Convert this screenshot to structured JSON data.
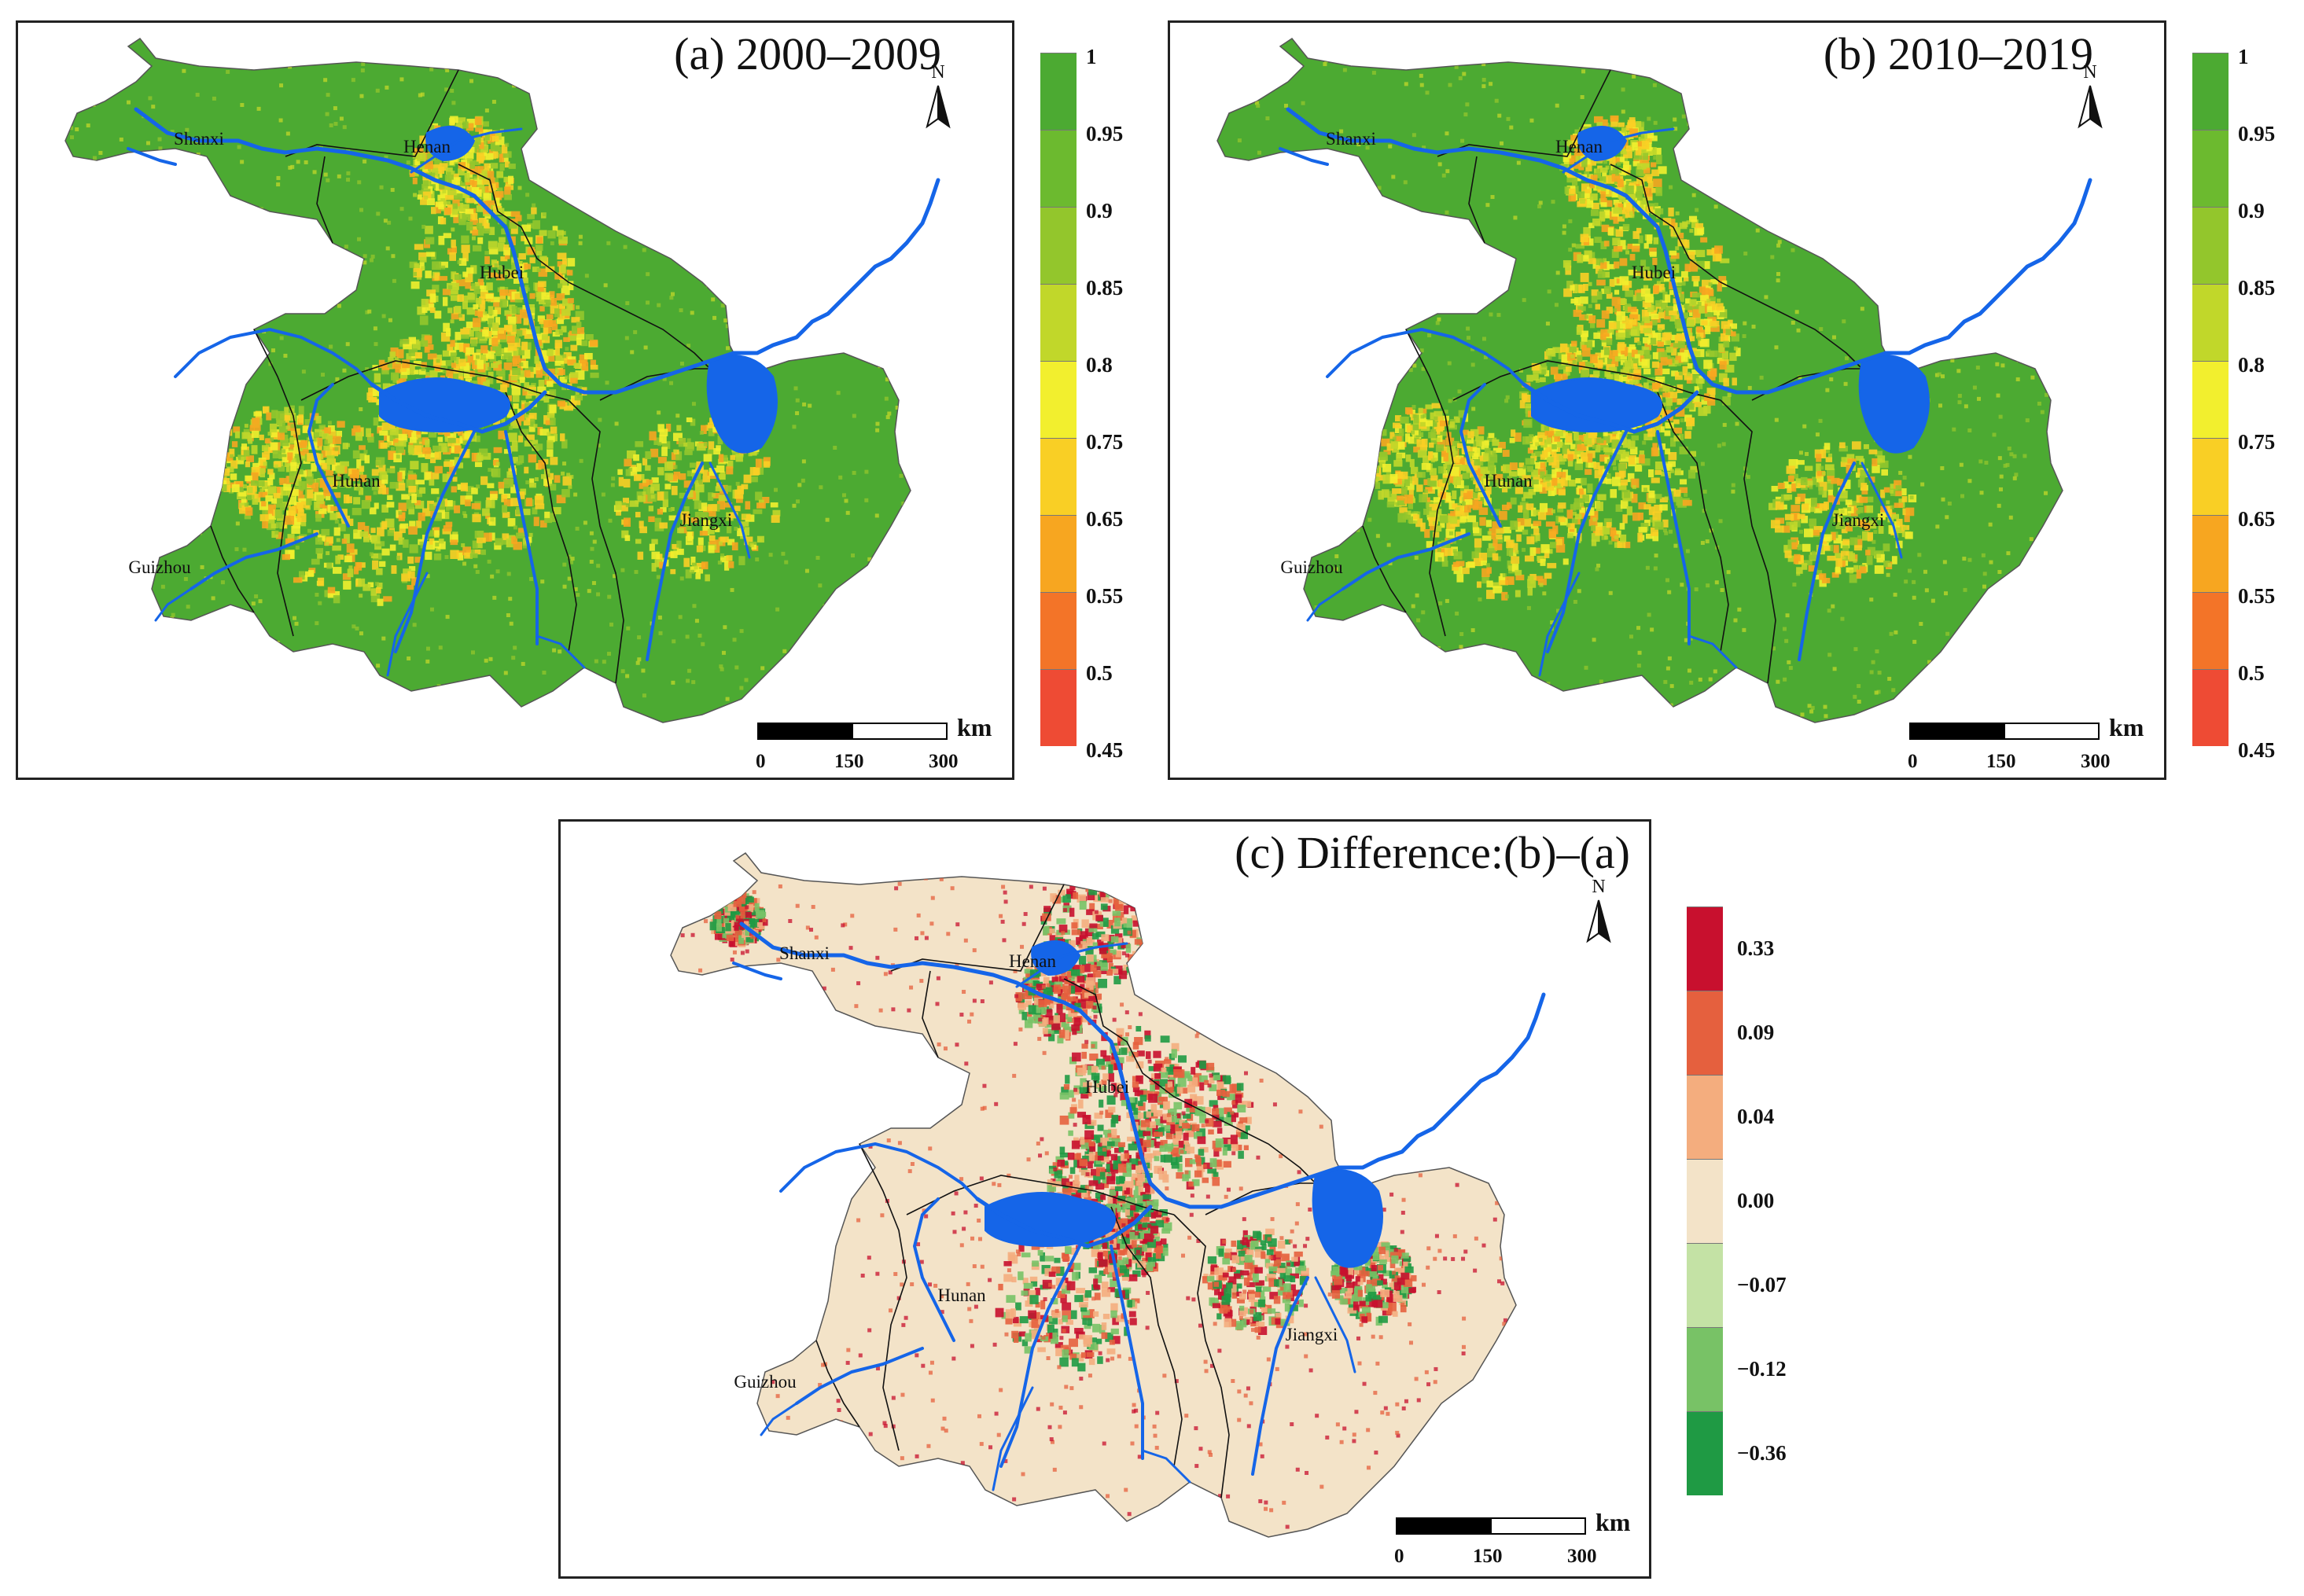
{
  "panels": [
    {
      "id": "a",
      "title": "(a) 2000–2009",
      "legend": {
        "colors": [
          "#4caa32",
          "#6cba2f",
          "#93c62c",
          "#c1d72a",
          "#f2ef2e",
          "#f9cf25",
          "#f7a620",
          "#f37428",
          "#ee4b34"
        ],
        "labels": [
          "1",
          "0.95",
          "0.9",
          "0.85",
          "0.8",
          "0.75",
          "0.65",
          "0.55",
          "0.5",
          "0.45"
        ]
      },
      "scale": {
        "ticks": [
          "0",
          "150",
          "300"
        ],
        "unit": "km"
      },
      "north": "N",
      "base_color": "#4caa32",
      "hot_colors": [
        "#93c62c",
        "#c1d72a",
        "#f2ef2e",
        "#f9cf25",
        "#f7a620"
      ]
    },
    {
      "id": "b",
      "title": "(b) 2010–2019",
      "legend": {
        "colors": [
          "#4caa32",
          "#6cba2f",
          "#93c62c",
          "#c1d72a",
          "#f2ef2e",
          "#f9cf25",
          "#f7a620",
          "#f37428",
          "#ee4b34"
        ],
        "labels": [
          "1",
          "0.95",
          "0.9",
          "0.85",
          "0.8",
          "0.75",
          "0.65",
          "0.55",
          "0.5",
          "0.45"
        ]
      },
      "scale": {
        "ticks": [
          "0",
          "150",
          "300"
        ],
        "unit": "km"
      },
      "north": "N",
      "base_color": "#4caa32",
      "hot_colors": [
        "#93c62c",
        "#c1d72a",
        "#f2ef2e",
        "#f9cf25",
        "#f7a620"
      ]
    },
    {
      "id": "c",
      "title": "(c) Difference:(b)–(a)",
      "legend": {
        "colors": [
          "#c8102e",
          "#e5603e",
          "#f4ad7e",
          "#f3e3c8",
          "#c4e2a5",
          "#78c266",
          "#1f9a44"
        ],
        "labels": [
          "0.33",
          "0.09",
          "0.04",
          "0.00",
          "−0.07",
          "−0.12",
          "−0.36"
        ]
      },
      "scale": {
        "ticks": [
          "0",
          "150",
          "300"
        ],
        "unit": "km"
      },
      "north": "N",
      "base_color": "#f3e3c8",
      "hot_colors": [
        "#e5603e",
        "#c8102e",
        "#78c266",
        "#1f9a44",
        "#f4ad7e"
      ]
    }
  ],
  "provinces": [
    "Shanxi",
    "Henan",
    "Hubei",
    "Hunan",
    "Jiangxi",
    "Guizhou"
  ],
  "river_color": "#1565e8"
}
